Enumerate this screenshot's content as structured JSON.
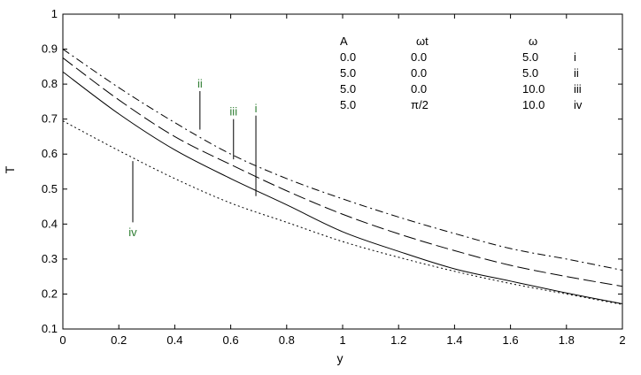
{
  "chart_data": {
    "type": "line",
    "title": "",
    "xlabel": "y",
    "ylabel": "T",
    "xlim": [
      0,
      2
    ],
    "ylim": [
      0.1,
      1
    ],
    "xticks": [
      0,
      0.2,
      0.4,
      0.6,
      0.8,
      1,
      1.2,
      1.4,
      1.6,
      1.8,
      2
    ],
    "xtick_labels": [
      "0",
      "0.2",
      "0.4",
      "0.6",
      "0.8",
      "1",
      "1.2",
      "1.4",
      "1.6",
      "1.8",
      "2"
    ],
    "yticks": [
      0.1,
      0.2,
      0.3,
      0.4,
      0.5,
      0.6,
      0.7,
      0.8,
      0.9,
      1
    ],
    "ytick_labels": [
      "0.1",
      "0.2",
      "0.3",
      "0.4",
      "0.5",
      "0.6",
      "0.7",
      "0.8",
      "0.9",
      "1"
    ],
    "grid": false,
    "legend": {
      "headers": [
        "A",
        "ωt",
        "ω"
      ],
      "rows": [
        [
          "0.0",
          "0.0",
          "5.0",
          "i"
        ],
        [
          "5.0",
          "0.0",
          "5.0",
          "ii"
        ],
        [
          "5.0",
          "0.0",
          "10.0",
          "iii"
        ],
        [
          "5.0",
          "π/2",
          "10.0",
          "iv"
        ]
      ]
    },
    "x": [
      0,
      0.2,
      0.4,
      0.6,
      0.8,
      1,
      1.2,
      1.4,
      1.6,
      1.8,
      2
    ],
    "series": [
      {
        "name": "i",
        "style": "solid",
        "values": [
          0.835,
          0.715,
          0.612,
          0.53,
          0.455,
          0.378,
          0.322,
          0.272,
          0.237,
          0.203,
          0.172
        ],
        "annotation": {
          "x": 0.69,
          "y_line_top": 0.71,
          "y_line_bottom": 0.48,
          "label_y": 0.72
        }
      },
      {
        "name": "ii",
        "style": "dashdot",
        "values": [
          0.9,
          0.79,
          0.69,
          0.6,
          0.53,
          0.472,
          0.42,
          0.373,
          0.33,
          0.3,
          0.268
        ],
        "annotation": {
          "x": 0.49,
          "y_line_top": 0.78,
          "y_line_bottom": 0.67,
          "label_y": 0.79
        }
      },
      {
        "name": "iii",
        "style": "dashed",
        "values": [
          0.875,
          0.755,
          0.65,
          0.57,
          0.495,
          0.428,
          0.372,
          0.324,
          0.282,
          0.25,
          0.222
        ],
        "annotation": {
          "x": 0.61,
          "y_line_top": 0.7,
          "y_line_bottom": 0.585,
          "label_y": 0.71
        }
      },
      {
        "name": "iv",
        "style": "dotted",
        "values": [
          0.695,
          0.61,
          0.53,
          0.46,
          0.405,
          0.35,
          0.305,
          0.265,
          0.23,
          0.2,
          0.17
        ],
        "annotation": {
          "x": 0.25,
          "y_line_top": 0.58,
          "y_line_bottom": 0.405,
          "label_y": 0.365
        }
      }
    ]
  }
}
